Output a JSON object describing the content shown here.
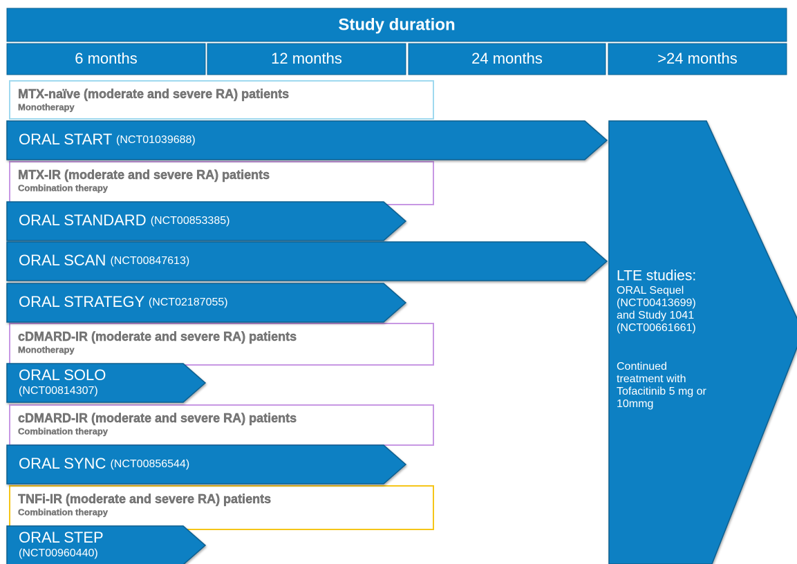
{
  "header": {
    "title": "Study duration"
  },
  "columns": [
    "6 months",
    "12 months",
    "24 months",
    ">24 months"
  ],
  "populations": [
    {
      "label": "MTX-naïve (moderate and severe RA) patients",
      "therapy": "Monotherapy"
    },
    {
      "label": "MTX-IR (moderate and severe RA) patients",
      "therapy": "Combination therapy"
    },
    {
      "label": "cDMARD-IR (moderate and severe RA) patients",
      "therapy": "Monotherapy"
    },
    {
      "label": "cDMARD-IR (moderate and severe RA) patients",
      "therapy": "Combination therapy"
    },
    {
      "label": "TNFi-IR (moderate and severe RA) patients",
      "therapy": "Combination therapy"
    }
  ],
  "studies": [
    {
      "name": "ORAL START",
      "id": "(NCT01039688)"
    },
    {
      "name": "ORAL STANDARD",
      "id": "(NCT00853385)"
    },
    {
      "name": "ORAL SCAN",
      "id": "(NCT00847613)"
    },
    {
      "name": "ORAL STRATEGY",
      "id": "(NCT02187055)"
    },
    {
      "name": "ORAL SOLO",
      "id": "(NCT00814307)"
    },
    {
      "name": "ORAL SYNC",
      "id": "(NCT00856544)"
    },
    {
      "name": "ORAL STEP",
      "id": "(NCT00960440)"
    }
  ],
  "lte": {
    "title": "LTE studies:",
    "lines": [
      "ORAL Sequel",
      "(NCT00413699)",
      "and Study 1041",
      "(NCT00661661)"
    ],
    "notes": [
      "Continued",
      "treatment with",
      "Tofacitinib 5 mg or",
      "10mmg"
    ]
  }
}
